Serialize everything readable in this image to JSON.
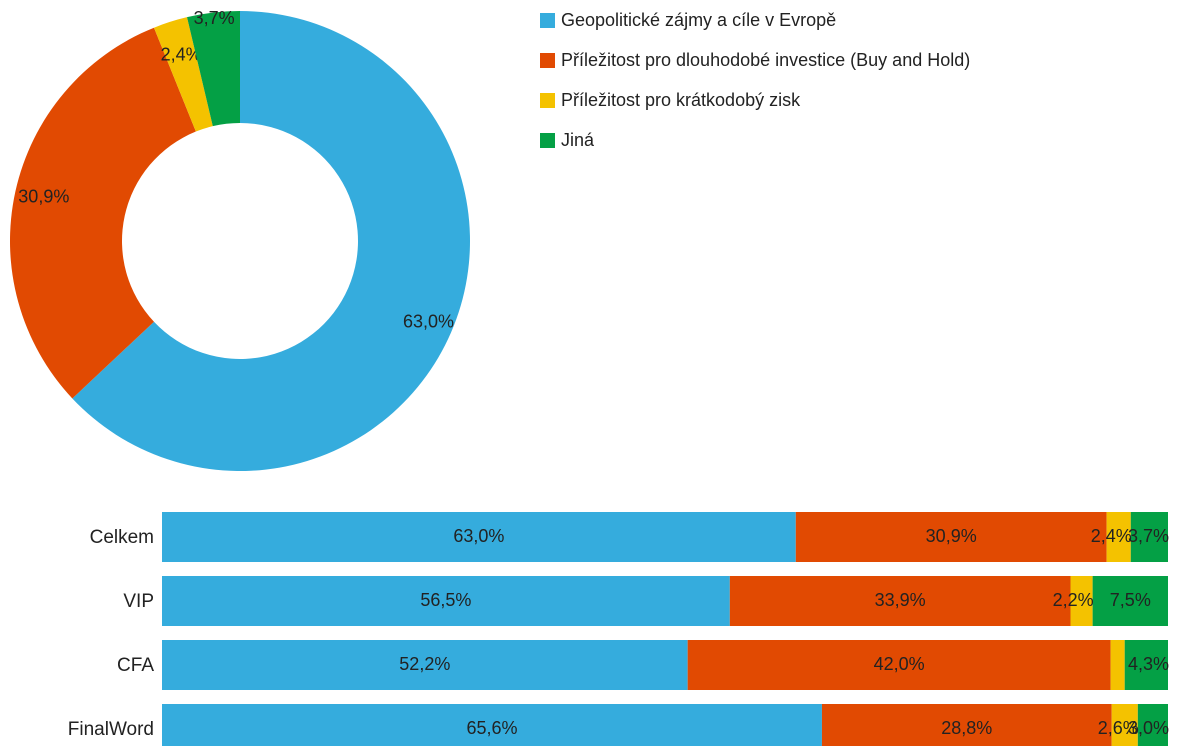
{
  "chart_data": [
    {
      "type": "pie",
      "donut": true,
      "series": [
        {
          "name": "Geopolitické zájmy a cíle v Evropě",
          "value": 63.0,
          "label": "63,0%",
          "color": "#35ACDD"
        },
        {
          "name": "Příležitost pro dlouhodobé investice (Buy and Hold)",
          "value": 30.9,
          "label": "30,9%",
          "color": "#E14A02"
        },
        {
          "name": "Příležitost pro krátkodobý zisk",
          "value": 2.4,
          "label": "2,4%",
          "color": "#F4C200"
        },
        {
          "name": "Jiná",
          "value": 3.7,
          "label": "3,7%",
          "color": "#04A045"
        }
      ],
      "legend_position": "right"
    },
    {
      "type": "bar",
      "orientation": "horizontal",
      "stacked": "percent",
      "categories": [
        "Celkem",
        "VIP",
        "CFA",
        "FinalWord"
      ],
      "series": [
        {
          "name": "Geopolitické zájmy a cíle v Evropě",
          "values": [
            63.0,
            56.5,
            52.2,
            65.6
          ],
          "labels": [
            "63,0%",
            "56,5%",
            "52,2%",
            "65,6%"
          ],
          "color": "#35ACDD"
        },
        {
          "name": "Příležitost pro dlouhodobé investice (Buy and Hold)",
          "values": [
            30.9,
            33.9,
            42.0,
            28.8
          ],
          "labels": [
            "30,9%",
            "33,9%",
            "42,0%",
            "28,8%"
          ],
          "color": "#E14A02"
        },
        {
          "name": "Příležitost pro krátkodobý zisk",
          "values": [
            2.4,
            2.2,
            1.4,
            2.6
          ],
          "labels": [
            "2,4%",
            "2,2%",
            "",
            "2,6%"
          ],
          "color": "#F4C200"
        },
        {
          "name": "Jiná",
          "values": [
            3.7,
            7.5,
            4.3,
            3.0
          ],
          "labels": [
            "3,7%",
            "7,5%",
            "4,3%",
            "3,0%"
          ],
          "color": "#04A045"
        }
      ]
    }
  ]
}
